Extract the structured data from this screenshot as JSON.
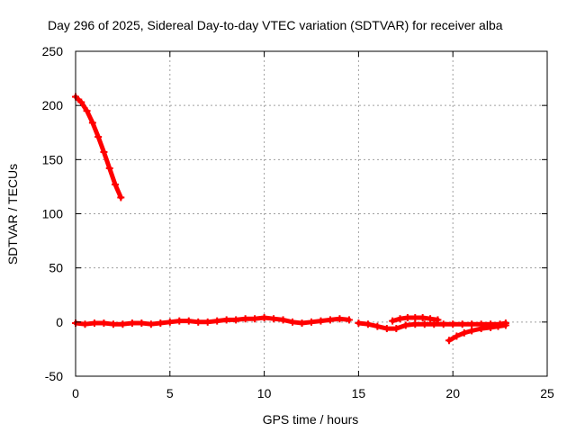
{
  "chart_data": {
    "type": "scatter",
    "title": "Day 296 of 2025, Sidereal Day-to-day VTEC variation (SDTVAR) for receiver alba",
    "xlabel": "GPS time / hours",
    "ylabel": "SDTVAR / TECUs",
    "xlim": [
      0,
      25
    ],
    "ylim": [
      -50,
      250
    ],
    "xticks": [
      0,
      5,
      10,
      15,
      20,
      25
    ],
    "yticks": [
      -50,
      0,
      50,
      100,
      150,
      200,
      250
    ],
    "grid": true,
    "legend": "none",
    "colors": {
      "series": "#ff0000",
      "grid": "#a0a0a0",
      "axis": "#000000"
    },
    "series": [
      {
        "x": [
          0.0,
          0.3,
          0.6,
          0.9,
          1.2,
          1.5,
          1.8,
          2.1,
          2.4
        ],
        "y": [
          208,
          203,
          195,
          184,
          171,
          157,
          142,
          127,
          115
        ]
      },
      {
        "x": [
          0.0,
          0.5,
          1.0,
          1.5,
          2.0,
          2.5,
          3.0,
          3.5,
          4.0,
          4.5,
          5.0,
          5.5,
          6.0,
          6.5,
          7.0,
          7.5,
          8.0,
          8.5,
          9.0,
          9.5,
          10.0,
          10.5,
          11.0,
          11.5,
          12.0,
          12.5,
          13.0,
          13.5,
          14.0,
          14.5
        ],
        "y": [
          -1,
          -2,
          -1,
          -1,
          -2,
          -2,
          -1,
          -1,
          -2,
          -1,
          0,
          1,
          1,
          0,
          0,
          1,
          2,
          2,
          3,
          3,
          4,
          3,
          2,
          0,
          -1,
          0,
          1,
          2,
          3,
          2
        ]
      },
      {
        "x": [
          15.0,
          15.5,
          16.0,
          16.5,
          17.0,
          17.5,
          18.0,
          18.5,
          19.0,
          19.5,
          20.0,
          20.5,
          21.0,
          21.5,
          22.0,
          22.5,
          22.8
        ],
        "y": [
          -1,
          -2,
          -4,
          -6,
          -6,
          -3,
          -2,
          -2,
          -2,
          -2,
          -2,
          -2,
          -2,
          -2,
          -2,
          -2,
          -1
        ]
      },
      {
        "x": [
          16.8,
          17.2,
          17.6,
          18.0,
          18.4,
          18.8,
          19.2
        ],
        "y": [
          1,
          3,
          4,
          4,
          4,
          3,
          2
        ]
      },
      {
        "x": [
          19.8,
          20.2,
          20.6,
          21.0,
          21.5,
          22.0,
          22.4,
          22.8
        ],
        "y": [
          -17,
          -13,
          -10,
          -8,
          -6,
          -5,
          -4,
          -3
        ]
      }
    ]
  }
}
